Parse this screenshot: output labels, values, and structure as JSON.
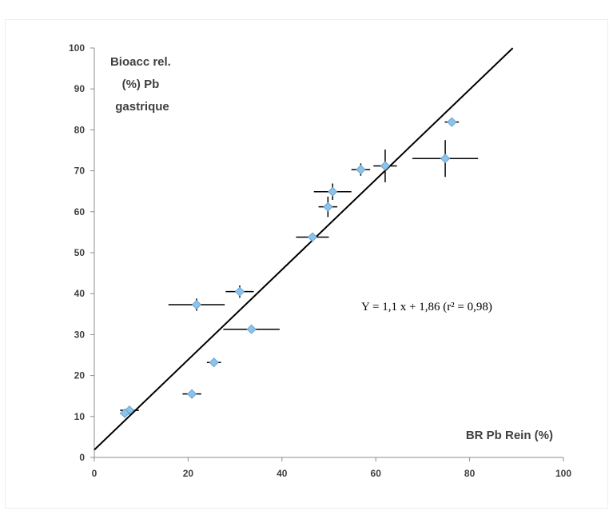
{
  "chart_data": {
    "type": "scatter",
    "title": "",
    "ylabel_lines": [
      "Bioacc rel.",
      "(%) Pb",
      "gastrique"
    ],
    "xlabel": "BR Pb Rein (%)",
    "xlim": [
      0,
      100
    ],
    "ylim": [
      0,
      100
    ],
    "xticks": [
      "0",
      "20",
      "40",
      "60",
      "80",
      "100"
    ],
    "yticks": [
      "0",
      "10",
      "20",
      "30",
      "40",
      "50",
      "60",
      "70",
      "80",
      "90",
      "100"
    ],
    "grid": false,
    "marker_color": "#8dc3e8",
    "errorbar_color": "#000000",
    "points": [
      {
        "x": 7.5,
        "y": 11.5,
        "xerr": 2.0,
        "yerr": 0
      },
      {
        "x": 6.5,
        "y": 10.8,
        "xerr": 1.0,
        "yerr": 0
      },
      {
        "x": 20.8,
        "y": 15.5,
        "xerr": 2.0,
        "yerr": 0
      },
      {
        "x": 25.5,
        "y": 23.2,
        "xerr": 1.5,
        "yerr": 0
      },
      {
        "x": 21.8,
        "y": 37.3,
        "xerr": 6.0,
        "yerr": 1.5
      },
      {
        "x": 31.0,
        "y": 40.5,
        "xerr": 3.0,
        "yerr": 1.5
      },
      {
        "x": 33.5,
        "y": 31.3,
        "xerr": 6.0,
        "yerr": 1.0
      },
      {
        "x": 46.5,
        "y": 53.8,
        "xerr": 3.5,
        "yerr": 1.0
      },
      {
        "x": 49.8,
        "y": 61.2,
        "xerr": 2.0,
        "yerr": 2.5
      },
      {
        "x": 50.8,
        "y": 64.9,
        "xerr": 4.0,
        "yerr": 2.0
      },
      {
        "x": 56.8,
        "y": 70.3,
        "xerr": 2.0,
        "yerr": 1.5
      },
      {
        "x": 62.0,
        "y": 71.2,
        "xerr": 2.5,
        "yerr": 4.0
      },
      {
        "x": 74.8,
        "y": 73.0,
        "xerr": 7.0,
        "yerr": 4.5
      },
      {
        "x": 76.2,
        "y": 81.9,
        "xerr": 1.5,
        "yerr": 1.0
      }
    ],
    "regression": {
      "slope": 1.1,
      "intercept": 1.86,
      "x_range": [
        0,
        89.2
      ],
      "color": "#000000"
    },
    "annotation": "Y = 1,1 x + 1,86 (r² = 0,98)"
  }
}
